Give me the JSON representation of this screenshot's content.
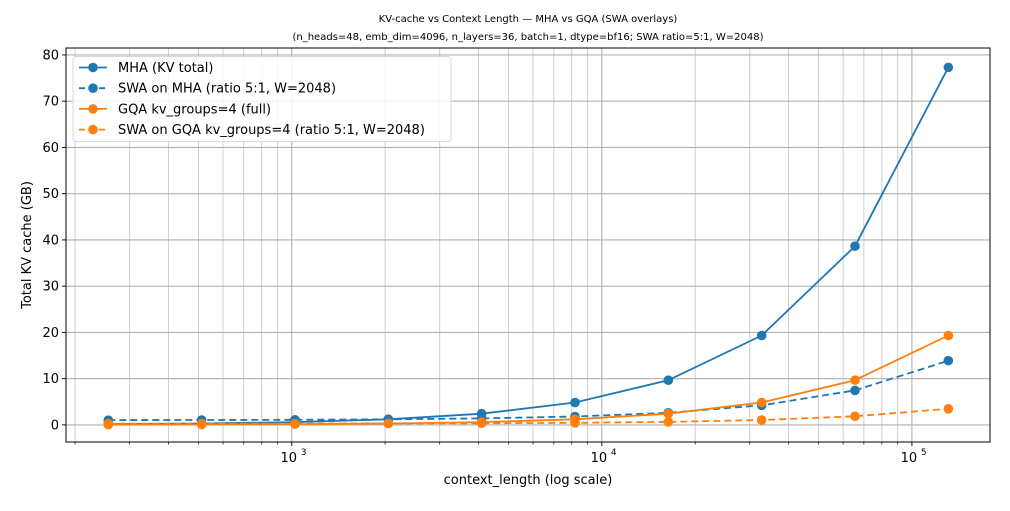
{
  "chart_data": {
    "type": "line",
    "title": "KV-cache vs Context Length — MHA vs GQA (SWA overlays)",
    "subtitle": "(n_heads=48, emb_dim=4096, n_layers=36, batch=1, dtype=bf16; SWA ratio=5:1, W=2048)",
    "xlabel": "context_length (log scale)",
    "ylabel": "Total KV cache (GB)",
    "xscale": "log",
    "xlim": [
      187,
      178600
    ],
    "ylim": [
      -3.7,
      81.5
    ],
    "grid": {
      "major": true,
      "minor_x": true
    },
    "legend_position": "upper left",
    "x": [
      256,
      512,
      1024,
      2048,
      4096,
      8192,
      16384,
      32768,
      65536,
      131072
    ],
    "x_ticks": [
      {
        "value": 1000,
        "base": "10",
        "exp": "3"
      },
      {
        "value": 10000,
        "base": "10",
        "exp": "4"
      },
      {
        "value": 100000,
        "base": "10",
        "exp": "5"
      }
    ],
    "y_ticks": [
      0,
      10,
      20,
      30,
      40,
      50,
      60,
      70,
      80
    ],
    "series": [
      {
        "name": "MHA (KV total)",
        "color": "#1f77b4",
        "linestyle": "solid",
        "values": [
          0.151,
          0.302,
          0.604,
          1.208,
          2.416,
          4.832,
          9.664,
          19.33,
          38.65,
          77.31
        ]
      },
      {
        "name": "SWA on MHA (ratio 5:1, W=2048)",
        "color": "#1f77b4",
        "linestyle": "dashed",
        "values": [
          1.032,
          1.057,
          1.107,
          1.208,
          1.409,
          1.812,
          2.617,
          4.228,
          7.449,
          13.89
        ]
      },
      {
        "name": "GQA kv_groups=4 (full)",
        "color": "#ff7f0e",
        "linestyle": "solid",
        "values": [
          0.038,
          0.075,
          0.151,
          0.302,
          0.604,
          1.208,
          2.416,
          4.832,
          9.664,
          19.33
        ]
      },
      {
        "name": "SWA on GQA kv_groups=4 (ratio 5:1, W=2048)",
        "color": "#ff7f0e",
        "linestyle": "dashed",
        "values": [
          0.258,
          0.264,
          0.277,
          0.302,
          0.352,
          0.453,
          0.654,
          1.057,
          1.862,
          3.473
        ]
      }
    ]
  }
}
